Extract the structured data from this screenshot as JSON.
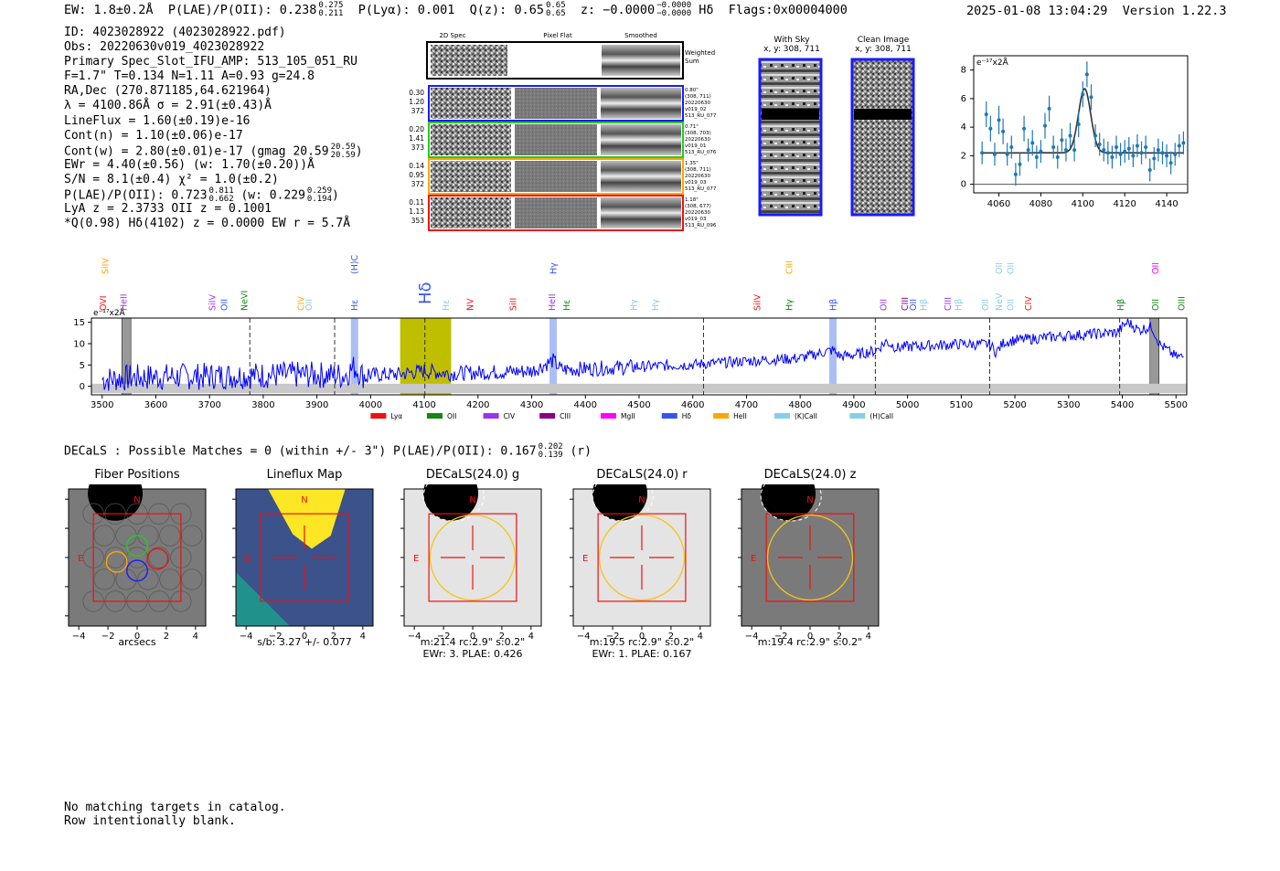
{
  "header": {
    "ew": "EW: 1.8±0.2Å",
    "plae_label": "P(LAE)/P(OII): 0.238",
    "plae_hi": "0.275",
    "plae_lo": "0.211",
    "plya": "P(Lyα): 0.001",
    "qz_label": "Q(z): 0.65",
    "qz_hi": "0.65",
    "qz_lo": "0.65",
    "z_label": "z: −0.0000",
    "z_hi": "−0.0000",
    "z_lo": "−0.0000",
    "line_name": "Hδ",
    "flags": "Flags:0x00004000",
    "timestamp": "2025-01-08 13:04:29",
    "version": "Version 1.22.3"
  },
  "info_lines": [
    "ID: 4023028922 (4023028922.pdf)",
    "Obs: 20220630v019_4023028922",
    "Primary Spec_Slot_IFU_AMP: 513_105_051_RU",
    "F=1.7\"  T=0.134  N=1.11  A=0.93  g=24.8",
    "RA,Dec (270.871185,64.621964)",
    "λ = 4100.86Å  σ = 2.91(±0.43)Å",
    "LineFlux = 1.60(±0.19)e-16",
    "Cont(n) = 1.10(±0.06)e-17",
    "Cont(w) = 2.80(±0.01)e-17 (gmag 20.59",
    "EWr = 4.40(±0.56) (w: 1.70(±0.20))Å",
    "S/N = 8.1(±0.4)  χ² = 1.0(±0.2)",
    "P(LAE)/P(OII): 0.723",
    "LyA z = 2.3733  OII z = 0.1001",
    "*Q(0.98) Hδ(4102) z = 0.0000  EW r = 5.7Å"
  ],
  "info_extras": {
    "gmag_hi": "20.59",
    "gmag_lo": "20.59",
    "plae2_hi": "0.811",
    "plae2_lo": "0.662",
    "plae2_w": "(w: 0.229",
    "plae2_w_hi": "0.259",
    "plae2_w_lo": "0.194"
  },
  "cutouts": {
    "columns": [
      "2D Spec",
      "Pixel Flat",
      "Smoothed"
    ],
    "weighted_sum": "Weighted Sum",
    "rows": [
      {
        "left": [
          "0.30",
          "1.20",
          "372"
        ],
        "right": [
          "0.80\"",
          "(308, 711)",
          "20220630",
          "v019_02",
          "513_RU_077"
        ],
        "color": "#1a1aff"
      },
      {
        "left": [
          "0.20",
          "1.41",
          "373"
        ],
        "right": [
          "0.71\"",
          "(308, 703)",
          "20220630",
          "v019_01",
          "513_RU_076"
        ],
        "color": "#22cc22"
      },
      {
        "left": [
          "0.14",
          "0.95",
          "372"
        ],
        "right": [
          "1.35\"",
          "(308, 711)",
          "20220630",
          "v019_03",
          "513_RU_077"
        ],
        "color": "#ffa500"
      },
      {
        "left": [
          "0.11",
          "1.13",
          "353"
        ],
        "right": [
          "1.18\"",
          "(308, 677)",
          "20220630",
          "v019_03",
          "513_RU_096"
        ],
        "color": "#ee1111"
      }
    ],
    "with_sky_title": "With Sky",
    "with_sky_coords": "x, y: 308, 711",
    "clean_title": "Clean Image",
    "clean_coords": "x, y: 308, 711"
  },
  "zoom_chart": {
    "type": "line",
    "ylabel": "e⁻¹⁷x2Å",
    "xlim": [
      4048,
      4150
    ],
    "ylim": [
      -0.6,
      9
    ],
    "xticks": [
      4060,
      4080,
      4100,
      4120,
      4140
    ],
    "yticks": [
      0,
      2,
      4,
      6,
      8
    ],
    "x": [
      4052,
      4054,
      4056,
      4058,
      4060,
      4062,
      4064,
      4066,
      4068,
      4070,
      4072,
      4074,
      4076,
      4078,
      4080,
      4082,
      4084,
      4086,
      4088,
      4090,
      4092,
      4094,
      4096,
      4098,
      4100,
      4102,
      4104,
      4106,
      4108,
      4110,
      4112,
      4114,
      4116,
      4118,
      4120,
      4122,
      4124,
      4126,
      4128,
      4130,
      4132,
      4134,
      4136,
      4138,
      4140,
      4142,
      4144,
      4146,
      4148
    ],
    "y": [
      2.2,
      4.9,
      3.9,
      2.1,
      4.5,
      3.7,
      2.1,
      2.6,
      0.7,
      1.4,
      3.9,
      2.4,
      2.9,
      1.9,
      2.3,
      4.1,
      5.3,
      2.6,
      1.9,
      3.1,
      2.4,
      3.4,
      2.4,
      4.2,
      6.3,
      7.7,
      6.1,
      3.4,
      2.8,
      2.4,
      2.2,
      1.9,
      2.6,
      2.1,
      2.3,
      2.5,
      2.0,
      2.7,
      2.2,
      2.6,
      1.0,
      1.8,
      2.4,
      2.2,
      2.0,
      1.5,
      2.1,
      2.7,
      2.9
    ],
    "err": [
      0.8,
      0.9,
      0.9,
      0.8,
      1.0,
      0.9,
      0.8,
      0.8,
      0.8,
      0.8,
      0.9,
      0.8,
      0.9,
      0.8,
      0.8,
      0.9,
      0.9,
      0.8,
      0.8,
      0.8,
      0.8,
      0.9,
      0.8,
      0.9,
      0.9,
      0.9,
      0.9,
      0.8,
      0.8,
      0.8,
      0.8,
      0.8,
      0.8,
      0.8,
      0.8,
      0.8,
      0.8,
      0.8,
      0.8,
      0.8,
      0.8,
      0.8,
      0.8,
      0.8,
      0.8,
      0.8,
      0.8,
      0.8,
      0.8
    ],
    "fit_center": 4100.86,
    "fit_sigma": 2.91,
    "fit_amp": 4.5,
    "fit_cont": 2.2,
    "color": "#1f77b4"
  },
  "spectrum_chart": {
    "type": "line",
    "ylabel": "e⁻¹⁷x2Å",
    "xlim": [
      3480,
      5520
    ],
    "ylim": [
      -2,
      16
    ],
    "xticks": [
      3500,
      3600,
      3700,
      3800,
      3900,
      4000,
      4100,
      4200,
      4300,
      4400,
      4500,
      4600,
      4700,
      4800,
      4900,
      5000,
      5100,
      5200,
      5300,
      5400,
      5500
    ],
    "yticks": [
      0,
      5,
      10,
      15
    ],
    "line_color": "#0000ff",
    "highlight_color": "#bfbf00",
    "highlight_range": [
      4055,
      4150
    ],
    "blue_bands": [
      3970,
      4340,
      4861
    ],
    "dashed_lines": [
      3775,
      3933,
      4101,
      4620,
      4940,
      5153,
      5395
    ],
    "gray_bands": [
      3545,
      5460
    ],
    "continuum": [
      [
        3500,
        1.6
      ],
      [
        3550,
        2.0
      ],
      [
        3600,
        2.2
      ],
      [
        3700,
        2.4
      ],
      [
        3800,
        2.6
      ],
      [
        3900,
        2.7
      ],
      [
        3950,
        2.5
      ],
      [
        3970,
        4.5
      ],
      [
        3985,
        2.6
      ],
      [
        4050,
        2.8
      ],
      [
        4100,
        3.6
      ],
      [
        4150,
        3.0
      ],
      [
        4200,
        3.2
      ],
      [
        4300,
        3.6
      ],
      [
        4340,
        6.0
      ],
      [
        4355,
        3.9
      ],
      [
        4400,
        4.1
      ],
      [
        4500,
        4.6
      ],
      [
        4600,
        5.1
      ],
      [
        4700,
        5.9
      ],
      [
        4800,
        6.6
      ],
      [
        4861,
        8.5
      ],
      [
        4875,
        7.0
      ],
      [
        4900,
        7.4
      ],
      [
        4940,
        8.3
      ],
      [
        4960,
        10.5
      ],
      [
        4980,
        9.0
      ],
      [
        5000,
        9.3
      ],
      [
        5100,
        9.9
      ],
      [
        5153,
        9.8
      ],
      [
        5165,
        8.0
      ],
      [
        5180,
        10.4
      ],
      [
        5200,
        10.8
      ],
      [
        5300,
        11.9
      ],
      [
        5390,
        12.6
      ],
      [
        5410,
        15.1
      ],
      [
        5430,
        13.2
      ],
      [
        5455,
        14.0
      ],
      [
        5470,
        9.8
      ],
      [
        5500,
        6.9
      ]
    ],
    "legend": [
      {
        "label": "Lyα",
        "color": "#ee1111"
      },
      {
        "label": "OII",
        "color": "#118811"
      },
      {
        "label": "CIV",
        "color": "#9933ee"
      },
      {
        "label": "CIII",
        "color": "#880088"
      },
      {
        "label": "MgII",
        "color": "#ff00ff"
      },
      {
        "label": "Hδ",
        "color": "#3355ee"
      },
      {
        "label": "HeII",
        "color": "#ffa500"
      },
      {
        "label": "(K)CaII",
        "color": "#87ceeb"
      },
      {
        "label": "(H)CaII",
        "color": "#87ceeb"
      }
    ],
    "line_labels": [
      {
        "label": "OVI",
        "x": 3502,
        "row": 0,
        "color": "#ee1111"
      },
      {
        "label": "SiIV",
        "x": 3506,
        "row": 2,
        "color": "#ffa500"
      },
      {
        "label": "HeII",
        "x": 3540,
        "row": 0,
        "color": "#9933ee"
      },
      {
        "label": "SiIV",
        "x": 3705,
        "row": 0,
        "color": "#9933ee"
      },
      {
        "label": "OII",
        "x": 3727,
        "row": 0,
        "color": "#3355ee"
      },
      {
        "label": "NeVI",
        "x": 3765,
        "row": 0,
        "color": "#118811"
      },
      {
        "label": "CIV",
        "x": 3870,
        "row": 0,
        "color": "#ffa500"
      },
      {
        "label": "OII",
        "x": 3885,
        "row": 0,
        "color": "#87ceeb"
      },
      {
        "label": "(H)CaII",
        "x": 3970,
        "row": 2,
        "color": "#3355ee"
      },
      {
        "label": "Hε",
        "x": 3970,
        "row": 0,
        "color": "#3355ee"
      },
      {
        "label": "Hδ",
        "x": 4101,
        "row": 1,
        "color": "#3355ee"
      },
      {
        "label": "Hε",
        "x": 4140,
        "row": 0,
        "color": "#87ceeb"
      },
      {
        "label": "NV",
        "x": 4185,
        "row": 0,
        "color": "#ee1111"
      },
      {
        "label": "SiII",
        "x": 4265,
        "row": 0,
        "color": "#ee1111"
      },
      {
        "label": "HeII",
        "x": 4338,
        "row": 0,
        "color": "#9933ee"
      },
      {
        "label": "Hγ",
        "x": 4340,
        "row": 2,
        "color": "#3355ee"
      },
      {
        "label": "Hε",
        "x": 4365,
        "row": 0,
        "color": "#118811"
      },
      {
        "label": "Hγ",
        "x": 4490,
        "row": 0,
        "color": "#87ceeb"
      },
      {
        "label": "Hγ",
        "x": 4530,
        "row": 0,
        "color": "#87ceeb"
      },
      {
        "label": "SiIV",
        "x": 4720,
        "row": 0,
        "color": "#ee1111"
      },
      {
        "label": "CIII",
        "x": 4780,
        "row": 2,
        "color": "#ffa500"
      },
      {
        "label": "Hγ",
        "x": 4780,
        "row": 0,
        "color": "#118811"
      },
      {
        "label": "Hβ",
        "x": 4861,
        "row": 0,
        "color": "#3355ee"
      },
      {
        "label": "OII",
        "x": 4955,
        "row": 0,
        "color": "#9933ee"
      },
      {
        "label": "CIII",
        "x": 4995,
        "row": 0,
        "color": "#880088"
      },
      {
        "label": "OII",
        "x": 5010,
        "row": 0,
        "color": "#3355ee"
      },
      {
        "label": "Hβ",
        "x": 5030,
        "row": 0,
        "color": "#87ceeb"
      },
      {
        "label": "CIII",
        "x": 5075,
        "row": 0,
        "color": "#9933ee"
      },
      {
        "label": "Hβ",
        "x": 5095,
        "row": 0,
        "color": "#87ceeb"
      },
      {
        "label": "OII",
        "x": 5145,
        "row": 0,
        "color": "#87ceeb"
      },
      {
        "label": "NeV",
        "x": 5170,
        "row": 0,
        "color": "#87ceeb"
      },
      {
        "label": "OII",
        "x": 5170,
        "row": 2,
        "color": "#87ceeb"
      },
      {
        "label": "OII",
        "x": 5192,
        "row": 0,
        "color": "#87ceeb"
      },
      {
        "label": "OII",
        "x": 5192,
        "row": 2,
        "color": "#87ceeb"
      },
      {
        "label": "CIV",
        "x": 5225,
        "row": 0,
        "color": "#ee1111"
      },
      {
        "label": "Hβ",
        "x": 5397,
        "row": 0,
        "color": "#118811"
      },
      {
        "label": "OII",
        "x": 5462,
        "row": 0,
        "color": "#118811"
      },
      {
        "label": "OII",
        "x": 5462,
        "row": 2,
        "color": "#ff00ff"
      },
      {
        "label": "OIII",
        "x": 5510,
        "row": 0,
        "color": "#118811"
      }
    ]
  },
  "decals": {
    "summary": "DECaLS : Possible Matches = 0 (within +/- 3\")  P(LAE)/P(OII): 0.167",
    "summary_hi": "0.202",
    "summary_lo": "0.139",
    "summary_band": "(r)",
    "panels": [
      {
        "title": "Fiber Positions",
        "caption1": "arcsecs",
        "caption2": ""
      },
      {
        "title": "Lineflux Map",
        "caption1": "s/b: 3.27 +/- 0.077",
        "caption2": ""
      },
      {
        "title": "DECaLS(24.0) g",
        "caption1": "m:21.4 rc:2.9\"  s:0.2\"",
        "caption2": "EWr: 3. PLAE: 0.426"
      },
      {
        "title": "DECaLS(24.0) r",
        "caption1": "m:19.5 rc:2.9\"  s:0.2\"",
        "caption2": "EWr: 1. PLAE: 0.167"
      },
      {
        "title": "DECaLS(24.0) z",
        "caption1": "m:19.4 rc:2.9\"  s:0.2\"",
        "caption2": ""
      }
    ],
    "compass_n": "N",
    "compass_e": "E",
    "ticks": [
      "−4",
      "−2",
      "0",
      "2",
      "4"
    ]
  },
  "footer": {
    "line1": "No matching targets in catalog.",
    "line2": "Row intentionally blank."
  }
}
